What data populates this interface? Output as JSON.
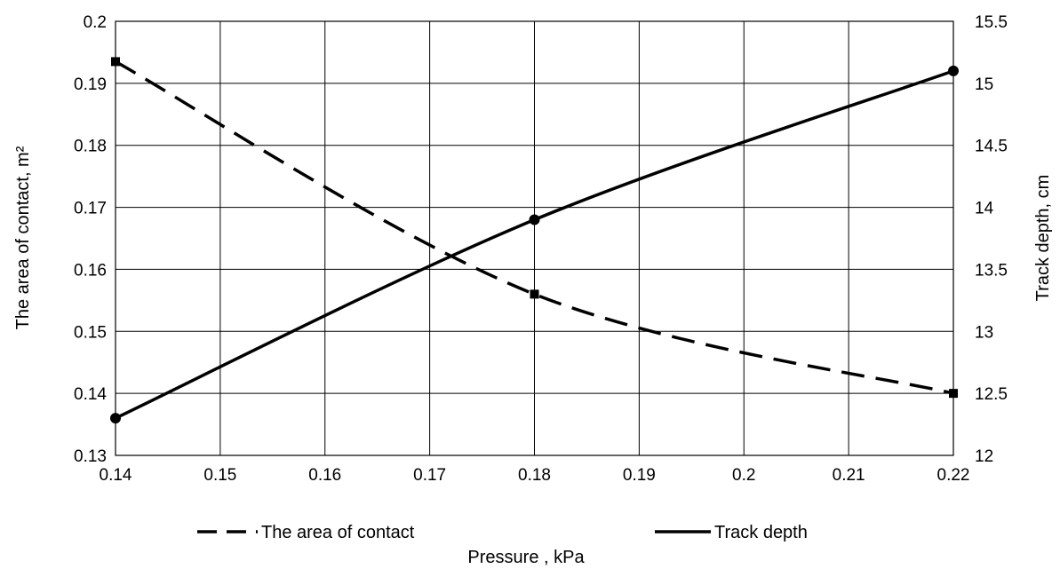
{
  "chart_data": {
    "type": "line",
    "xlabel": "Pressure , kPa",
    "ylabel_left": "The area of contact, m²",
    "ylabel_right": "Track depth, cm",
    "xlim": [
      0.14,
      0.22
    ],
    "xticks": [
      "0.14",
      "0.15",
      "0.16",
      "0.17",
      "0.18",
      "0.19",
      "0.2",
      "0.21",
      "0.22"
    ],
    "ylim_left": [
      0.13,
      0.2
    ],
    "yticks_left": [
      "0.13",
      "0.14",
      "0.15",
      "0.16",
      "0.17",
      "0.18",
      "0.19",
      "0.2"
    ],
    "ylim_right": [
      12,
      15.5
    ],
    "yticks_right": [
      "12",
      "12.5",
      "13",
      "13.5",
      "14",
      "14.5",
      "15",
      "15.5"
    ],
    "grid": true,
    "legend_position": "bottom",
    "series": [
      {
        "name": "The area of contact",
        "axis": "left",
        "style": "dashed",
        "marker": "square",
        "color": "#000000",
        "points": [
          [
            0.14,
            0.1935
          ],
          [
            0.18,
            0.156
          ],
          [
            0.22,
            0.14
          ]
        ]
      },
      {
        "name": "Track depth",
        "axis": "right",
        "style": "solid",
        "marker": "circle",
        "color": "#000000",
        "points": [
          [
            0.14,
            12.3
          ],
          [
            0.18,
            13.9
          ],
          [
            0.22,
            15.1
          ]
        ]
      }
    ]
  }
}
